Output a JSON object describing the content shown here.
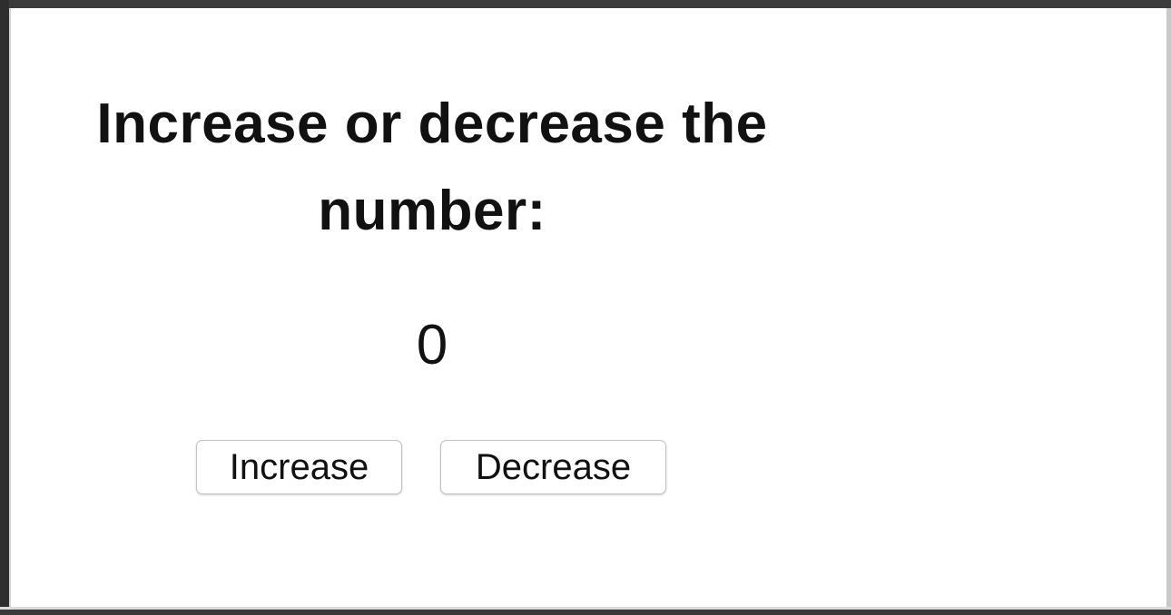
{
  "page": {
    "heading": "Increase or decrease the number:",
    "counter_value": "0"
  },
  "buttons": {
    "increase_label": "Increase",
    "decrease_label": "Decrease"
  },
  "colors": {
    "background": "#ffffff",
    "text": "#111111",
    "button_border": "#c3c3c3",
    "frame": "#3c3c3c"
  }
}
